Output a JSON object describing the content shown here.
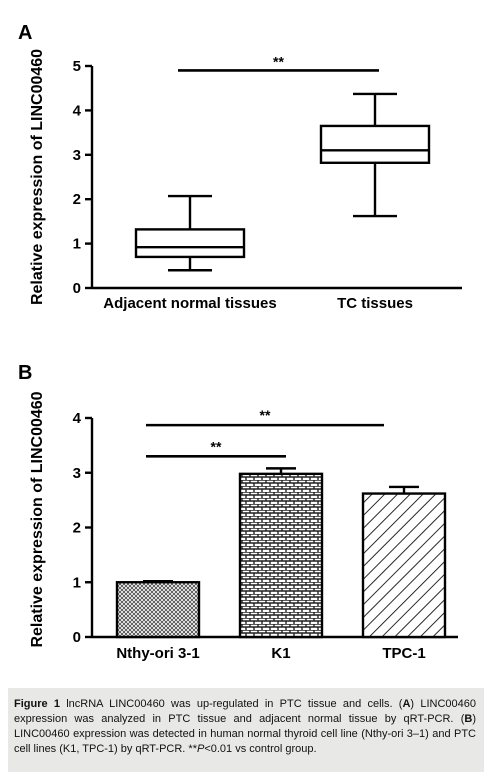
{
  "panels": {
    "A": {
      "letter": "A"
    },
    "B": {
      "letter": "B"
    }
  },
  "chart_data": [
    {
      "type": "box",
      "panel": "A",
      "title": "",
      "xlabel": "",
      "ylabel": "Relative expression of LINC00460",
      "ylim": [
        0,
        5
      ],
      "yticks": [
        0,
        1,
        2,
        3,
        4,
        5
      ],
      "categories": [
        "Adjacent normal tissues",
        "TC tissues"
      ],
      "boxes": [
        {
          "min": 0.4,
          "q1": 0.7,
          "median": 0.92,
          "q3": 1.32,
          "max": 2.07
        },
        {
          "min": 1.62,
          "q1": 2.82,
          "median": 3.1,
          "q3": 3.65,
          "max": 4.37
        }
      ],
      "significance": [
        {
          "from": 0,
          "to": 1,
          "label": "**",
          "y": 4.9
        }
      ]
    },
    {
      "type": "bar",
      "panel": "B",
      "title": "",
      "xlabel": "",
      "ylabel": "Relative expression of LINC00460",
      "ylim": [
        0,
        4
      ],
      "yticks": [
        0,
        1,
        2,
        3,
        4
      ],
      "categories": [
        "Nthy-ori 3-1",
        "K1",
        "TPC-1"
      ],
      "values": [
        1.0,
        2.98,
        2.62
      ],
      "errors": [
        0.02,
        0.1,
        0.12
      ],
      "patterns": [
        "crosshatch",
        "brick",
        "diagonal"
      ],
      "significance": [
        {
          "from": 0,
          "to": 1,
          "label": "**",
          "y": 3.3
        },
        {
          "from": 0,
          "to": 2,
          "label": "**",
          "y": 3.87
        }
      ]
    }
  ],
  "caption": {
    "figure_label": "Figure 1",
    "title_text": " lncRNA LINC00460 was up-regulated in PTC tissue and cells. (",
    "label_A": "A",
    "text_A": ") LINC00460 expression was analyzed in PTC tissue and adjacent normal tissue by qRT-PCR. (",
    "label_B": "B",
    "text_B": ") LINC00460 expression was detected in human normal thyroid cell line (Nthy-ori 3–1) and PTC cell lines (K1, TPC-1) by qRT-PCR. **",
    "p_italic": "P",
    "p_rest": "<0.01 vs control group."
  }
}
